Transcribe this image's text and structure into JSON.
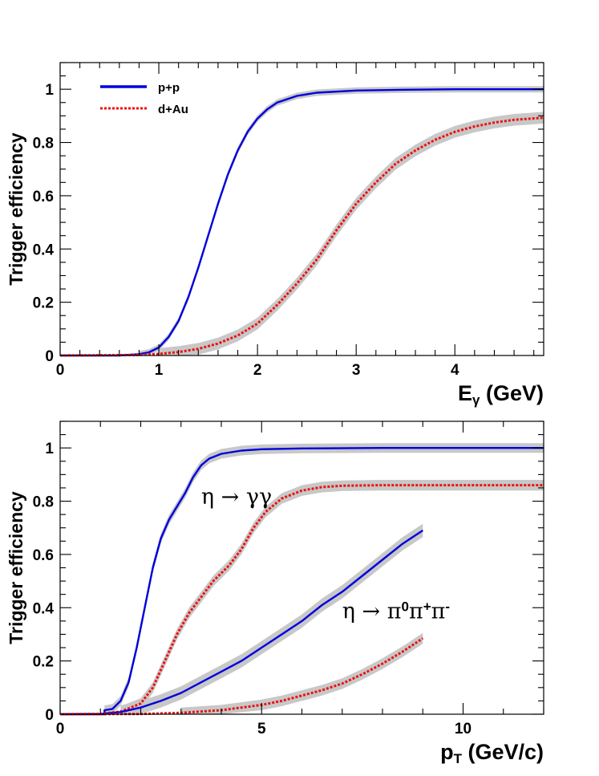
{
  "chart_data": [
    {
      "type": "line",
      "panel": "top",
      "xlabel_main": "E",
      "xlabel_sub": "γ",
      "xlabel_unit": " (GeV)",
      "ylabel": "Trigger efficiency",
      "xlim": [
        0,
        4.9
      ],
      "ylim": [
        0,
        1.1
      ],
      "x_ticks": [
        0,
        1,
        2,
        3,
        4
      ],
      "y_ticks": [
        0,
        0.2,
        0.4,
        0.6,
        0.8,
        1
      ],
      "y_tick_labels": [
        "0",
        "0.2",
        "0.4",
        "0.6",
        "0.8",
        "1"
      ],
      "legend": {
        "position": "top-left",
        "entries": [
          "p+p",
          "d+Au"
        ]
      },
      "series": [
        {
          "name": "p+p",
          "color": "#0000dd",
          "style": "solid",
          "band_width": 0.012,
          "points": [
            [
              0,
              0
            ],
            [
              0.6,
              0
            ],
            [
              0.8,
              0.005
            ],
            [
              0.9,
              0.012
            ],
            [
              1.0,
              0.03
            ],
            [
              1.1,
              0.07
            ],
            [
              1.2,
              0.13
            ],
            [
              1.3,
              0.22
            ],
            [
              1.4,
              0.33
            ],
            [
              1.5,
              0.45
            ],
            [
              1.6,
              0.57
            ],
            [
              1.7,
              0.68
            ],
            [
              1.8,
              0.77
            ],
            [
              1.9,
              0.84
            ],
            [
              2.0,
              0.89
            ],
            [
              2.1,
              0.925
            ],
            [
              2.2,
              0.95
            ],
            [
              2.4,
              0.975
            ],
            [
              2.6,
              0.987
            ],
            [
              3.0,
              0.995
            ],
            [
              3.5,
              0.998
            ],
            [
              4.0,
              1.0
            ],
            [
              4.9,
              1.0
            ]
          ]
        },
        {
          "name": "d+Au",
          "color": "#ee1111",
          "style": "dotted",
          "band_width": 0.022,
          "points": [
            [
              0,
              0
            ],
            [
              0.8,
              0.002
            ],
            [
              1.0,
              0.006
            ],
            [
              1.2,
              0.013
            ],
            [
              1.4,
              0.025
            ],
            [
              1.6,
              0.045
            ],
            [
              1.8,
              0.075
            ],
            [
              2.0,
              0.12
            ],
            [
              2.2,
              0.19
            ],
            [
              2.4,
              0.27
            ],
            [
              2.6,
              0.36
            ],
            [
              2.8,
              0.47
            ],
            [
              3.0,
              0.57
            ],
            [
              3.2,
              0.65
            ],
            [
              3.4,
              0.72
            ],
            [
              3.6,
              0.77
            ],
            [
              3.8,
              0.81
            ],
            [
              4.0,
              0.84
            ],
            [
              4.2,
              0.86
            ],
            [
              4.4,
              0.875
            ],
            [
              4.6,
              0.885
            ],
            [
              4.9,
              0.893
            ]
          ]
        }
      ]
    },
    {
      "type": "line",
      "panel": "bottom",
      "xlabel_main": "p",
      "xlabel_sub": "T",
      "xlabel_unit": " (GeV/c)",
      "ylabel": "Trigger efficiency",
      "xlim": [
        0,
        12
      ],
      "ylim": [
        0,
        1.1
      ],
      "x_ticks": [
        0,
        5,
        10
      ],
      "y_ticks": [
        0,
        0.2,
        0.4,
        0.6,
        0.8,
        1
      ],
      "y_tick_labels": [
        "0",
        "0.2",
        "0.4",
        "0.6",
        "0.8",
        "1"
      ],
      "annotations": [
        {
          "text_parts": [
            "η → γγ"
          ],
          "x": 3.5,
          "y": 0.79
        },
        {
          "text_parts": [
            "η → π",
            "0",
            "π",
            "+",
            "π",
            "-"
          ],
          "x": 7.0,
          "y": 0.36
        }
      ],
      "series": [
        {
          "group": "η → γγ",
          "color": "#0000dd",
          "style": "solid",
          "band_width": 0.018,
          "points": [
            [
              0,
              0
            ],
            [
              1.1,
              0
            ],
            [
              1.1,
              0.015
            ],
            [
              1.3,
              0.02
            ],
            [
              1.5,
              0.05
            ],
            [
              1.7,
              0.12
            ],
            [
              1.9,
              0.25
            ],
            [
              2.1,
              0.4
            ],
            [
              2.3,
              0.55
            ],
            [
              2.5,
              0.66
            ],
            [
              2.7,
              0.73
            ],
            [
              2.9,
              0.78
            ],
            [
              3.1,
              0.83
            ],
            [
              3.3,
              0.89
            ],
            [
              3.5,
              0.935
            ],
            [
              3.7,
              0.96
            ],
            [
              4.0,
              0.978
            ],
            [
              4.5,
              0.99
            ],
            [
              5.0,
              0.995
            ],
            [
              6.0,
              0.998
            ],
            [
              8.0,
              1.0
            ],
            [
              12.0,
              1.0
            ]
          ]
        },
        {
          "group": "η → γγ",
          "color": "#ee1111",
          "style": "dotted",
          "band_width": 0.02,
          "points": [
            [
              0,
              0
            ],
            [
              1.0,
              0.001
            ],
            [
              1.5,
              0.01
            ],
            [
              2.0,
              0.04
            ],
            [
              2.3,
              0.1
            ],
            [
              2.6,
              0.2
            ],
            [
              2.9,
              0.3
            ],
            [
              3.2,
              0.38
            ],
            [
              3.5,
              0.44
            ],
            [
              3.8,
              0.5
            ],
            [
              4.2,
              0.56
            ],
            [
              4.5,
              0.62
            ],
            [
              4.8,
              0.7
            ],
            [
              5.1,
              0.76
            ],
            [
              5.5,
              0.81
            ],
            [
              6.0,
              0.84
            ],
            [
              6.5,
              0.853
            ],
            [
              7.0,
              0.858
            ],
            [
              8.0,
              0.86
            ],
            [
              9.0,
              0.86
            ],
            [
              12.0,
              0.86
            ]
          ]
        },
        {
          "group": "η → π0π+π-",
          "color": "#0000dd",
          "style": "solid",
          "band_width": 0.025,
          "points": [
            [
              0,
              0
            ],
            [
              1.0,
              0.001
            ],
            [
              1.5,
              0.008
            ],
            [
              2.0,
              0.025
            ],
            [
              2.5,
              0.05
            ],
            [
              3.0,
              0.08
            ],
            [
              3.5,
              0.12
            ],
            [
              4.0,
              0.16
            ],
            [
              4.5,
              0.2
            ],
            [
              5.0,
              0.25
            ],
            [
              5.5,
              0.3
            ],
            [
              6.0,
              0.35
            ],
            [
              6.5,
              0.41
            ],
            [
              7.0,
              0.46
            ],
            [
              7.5,
              0.52
            ],
            [
              8.0,
              0.58
            ],
            [
              8.5,
              0.64
            ],
            [
              9.0,
              0.69
            ]
          ]
        },
        {
          "group": "η → π0π+π-",
          "color": "#ee1111",
          "style": "dotted",
          "band_width": 0.02,
          "points": [
            [
              0,
              0
            ],
            [
              2.0,
              0.001
            ],
            [
              3.0,
              0.005
            ],
            [
              4.0,
              0.015
            ],
            [
              5.0,
              0.035
            ],
            [
              5.5,
              0.05
            ],
            [
              6.0,
              0.07
            ],
            [
              6.5,
              0.09
            ],
            [
              7.0,
              0.115
            ],
            [
              7.5,
              0.15
            ],
            [
              8.0,
              0.19
            ],
            [
              8.5,
              0.235
            ],
            [
              9.0,
              0.285
            ]
          ]
        }
      ]
    }
  ]
}
